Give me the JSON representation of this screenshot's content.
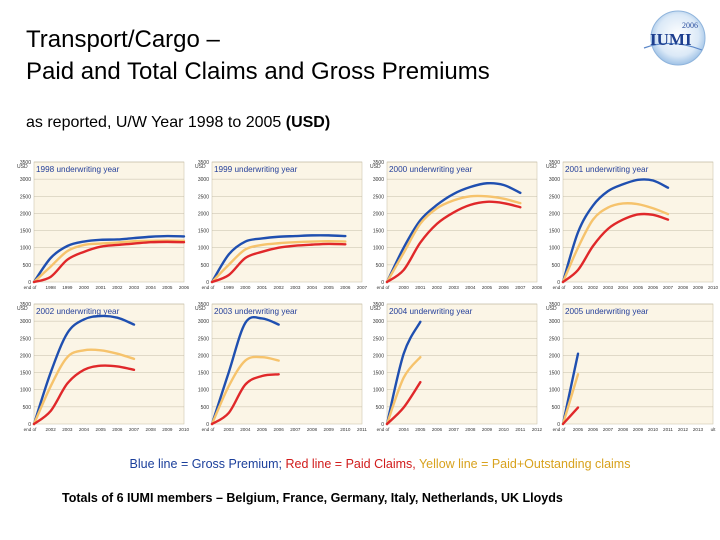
{
  "header": {
    "title_line1": "Transport/Cargo –",
    "title_line2": "Paid and Total Claims and Gross Premiums",
    "subtitle_main": "as reported, U/W Year 1998 to 2005 ",
    "subtitle_unit": "(USD)"
  },
  "logo": {
    "year_text": "2006",
    "name_text": "IUMI"
  },
  "legend": {
    "blue_text": "Blue line = Gross Premium;",
    "red_text": " Red line = Paid Claims,",
    "yellow_text": " Yellow line = Paid+Outstanding claims"
  },
  "footnote": "Totals of 6 IUMI members – Belgium, France, Germany, Italy, Netherlands, UK Lloyds",
  "colors": {
    "gross_premium": "#1f4fb0",
    "paid_claims": "#e0282a",
    "paid_outstanding": "#f6c36c",
    "panel_bg": "#fbf5e6",
    "grid": "#b8b09a",
    "panel_title": "#243f9a"
  },
  "chart_data": [
    {
      "type": "line",
      "title": "1998 underwriting year",
      "ylabel_unit": "USD",
      "ylim": [
        0,
        3500
      ],
      "yticks": [
        "0",
        "500",
        "1000",
        "1500",
        "2000",
        "2500",
        "3000",
        "3500"
      ],
      "x_labels": [
        "end of",
        "1998",
        "1999",
        "2000",
        "2001",
        "2002",
        "2003",
        "2004",
        "2005",
        "2006"
      ],
      "series": [
        {
          "key": "gross_premium",
          "values": [
            0,
            700,
            1050,
            1180,
            1230,
            1240,
            1280,
            1320,
            1340,
            1330
          ]
        },
        {
          "key": "paid_outstanding",
          "values": [
            0,
            450,
            900,
            1080,
            1120,
            1150,
            1190,
            1200,
            1210,
            1200
          ]
        },
        {
          "key": "paid_claims",
          "values": [
            0,
            150,
            650,
            880,
            1030,
            1080,
            1120,
            1160,
            1170,
            1160
          ]
        }
      ]
    },
    {
      "type": "line",
      "title": "1999 underwriting year",
      "ylabel_unit": "USD",
      "ylim": [
        0,
        3500
      ],
      "yticks": [
        "0",
        "500",
        "1000",
        "1500",
        "2000",
        "2500",
        "3000",
        "3500"
      ],
      "x_labels": [
        "end of",
        "1999",
        "2000",
        "2001",
        "2002",
        "2003",
        "2004",
        "2005",
        "2006",
        "2007"
      ],
      "series": [
        {
          "key": "gross_premium",
          "values": [
            0,
            800,
            1180,
            1270,
            1320,
            1340,
            1360,
            1360,
            1340
          ]
        },
        {
          "key": "paid_outstanding",
          "values": [
            0,
            500,
            950,
            1080,
            1130,
            1160,
            1180,
            1190,
            1180
          ]
        },
        {
          "key": "paid_claims",
          "values": [
            0,
            200,
            700,
            880,
            1000,
            1060,
            1090,
            1110,
            1100
          ]
        }
      ]
    },
    {
      "type": "line",
      "title": "2000 underwriting year",
      "ylabel_unit": "USD",
      "ylim": [
        0,
        3500
      ],
      "yticks": [
        "0",
        "500",
        "1000",
        "1500",
        "2000",
        "2500",
        "3000",
        "3500"
      ],
      "x_labels": [
        "end of",
        "2000",
        "2001",
        "2002",
        "2003",
        "2004",
        "2005",
        "2006",
        "2007",
        "2008"
      ],
      "series": [
        {
          "key": "gross_premium",
          "values": [
            0,
            1000,
            1800,
            2250,
            2570,
            2770,
            2880,
            2830,
            2600
          ]
        },
        {
          "key": "paid_outstanding",
          "values": [
            0,
            850,
            1700,
            2150,
            2380,
            2500,
            2500,
            2430,
            2300
          ]
        },
        {
          "key": "paid_claims",
          "values": [
            0,
            350,
            1150,
            1700,
            2030,
            2250,
            2340,
            2300,
            2180
          ]
        }
      ]
    },
    {
      "type": "line",
      "title": "2001 underwriting year",
      "ylabel_unit": "USD",
      "ylim": [
        0,
        3500
      ],
      "yticks": [
        "0",
        "500",
        "1000",
        "1500",
        "2000",
        "2500",
        "3000",
        "3500"
      ],
      "x_labels": [
        "end of",
        "2001",
        "2002",
        "2003",
        "2004",
        "2005",
        "2006",
        "2007",
        "2008",
        "2009",
        "2010"
      ],
      "series": [
        {
          "key": "gross_premium",
          "values": [
            0,
            1450,
            2230,
            2650,
            2850,
            2980,
            2960,
            2750
          ]
        },
        {
          "key": "paid_outstanding",
          "values": [
            0,
            1000,
            1820,
            2170,
            2290,
            2270,
            2150,
            1980
          ]
        },
        {
          "key": "paid_claims",
          "values": [
            0,
            350,
            1050,
            1550,
            1820,
            1970,
            1960,
            1820
          ]
        }
      ]
    },
    {
      "type": "line",
      "title": "2002 underwriting year",
      "ylabel_unit": "USD",
      "ylim": [
        0,
        3500
      ],
      "yticks": [
        "0",
        "500",
        "1000",
        "1500",
        "2000",
        "2500",
        "3000",
        "3500"
      ],
      "x_labels": [
        "end of",
        "2002",
        "2003",
        "2004",
        "2005",
        "2006",
        "2007",
        "2008",
        "2009",
        "2010"
      ],
      "series": [
        {
          "key": "gross_premium",
          "values": [
            0,
            1500,
            2650,
            3050,
            3150,
            3100,
            2900
          ]
        },
        {
          "key": "paid_outstanding",
          "values": [
            0,
            1100,
            1950,
            2150,
            2150,
            2050,
            1900
          ]
        },
        {
          "key": "paid_claims",
          "values": [
            0,
            380,
            1180,
            1580,
            1700,
            1680,
            1580
          ]
        }
      ]
    },
    {
      "type": "line",
      "title": "2003 underwriting year",
      "ylabel_unit": "USD",
      "ylim": [
        0,
        3500
      ],
      "yticks": [
        "0",
        "500",
        "1000",
        "1500",
        "2000",
        "2500",
        "3000",
        "3500"
      ],
      "x_labels": [
        "end of",
        "2003",
        "2004",
        "2005",
        "2006",
        "2007",
        "2008",
        "2009",
        "2010",
        "2011"
      ],
      "series": [
        {
          "key": "gross_premium",
          "values": [
            0,
            1500,
            2950,
            3080,
            2900
          ]
        },
        {
          "key": "paid_outstanding",
          "values": [
            0,
            1100,
            1850,
            1950,
            1850
          ]
        },
        {
          "key": "paid_claims",
          "values": [
            0,
            320,
            1150,
            1400,
            1450
          ]
        }
      ]
    },
    {
      "type": "line",
      "title": "2004 underwriting year",
      "ylabel_unit": "USD",
      "ylim": [
        0,
        3500
      ],
      "yticks": [
        "0",
        "500",
        "1000",
        "1500",
        "2000",
        "2500",
        "3000",
        "3500"
      ],
      "x_labels": [
        "end of",
        "2004",
        "2005",
        "2006",
        "2007",
        "2008",
        "2009",
        "2010",
        "2011",
        "2012"
      ],
      "series": [
        {
          "key": "gross_premium",
          "values": [
            0,
            2050,
            2980
          ]
        },
        {
          "key": "paid_outstanding",
          "values": [
            0,
            1350,
            1950
          ]
        },
        {
          "key": "paid_claims",
          "values": [
            0,
            480,
            1220
          ]
        }
      ]
    },
    {
      "type": "line",
      "title": "2005 underwriting year",
      "ylabel_unit": "USD",
      "ylim": [
        0,
        3500
      ],
      "yticks": [
        "0",
        "500",
        "1000",
        "1500",
        "2000",
        "2500",
        "3000",
        "3500"
      ],
      "x_labels": [
        "end of",
        "2005",
        "2006",
        "2007",
        "2008",
        "2009",
        "2010",
        "2011",
        "2012",
        "2013",
        "ult"
      ],
      "series": [
        {
          "key": "gross_premium",
          "values": [
            0,
            2050
          ]
        },
        {
          "key": "paid_outstanding",
          "values": [
            0,
            1450
          ]
        },
        {
          "key": "paid_claims",
          "values": [
            0,
            480
          ]
        }
      ]
    }
  ]
}
